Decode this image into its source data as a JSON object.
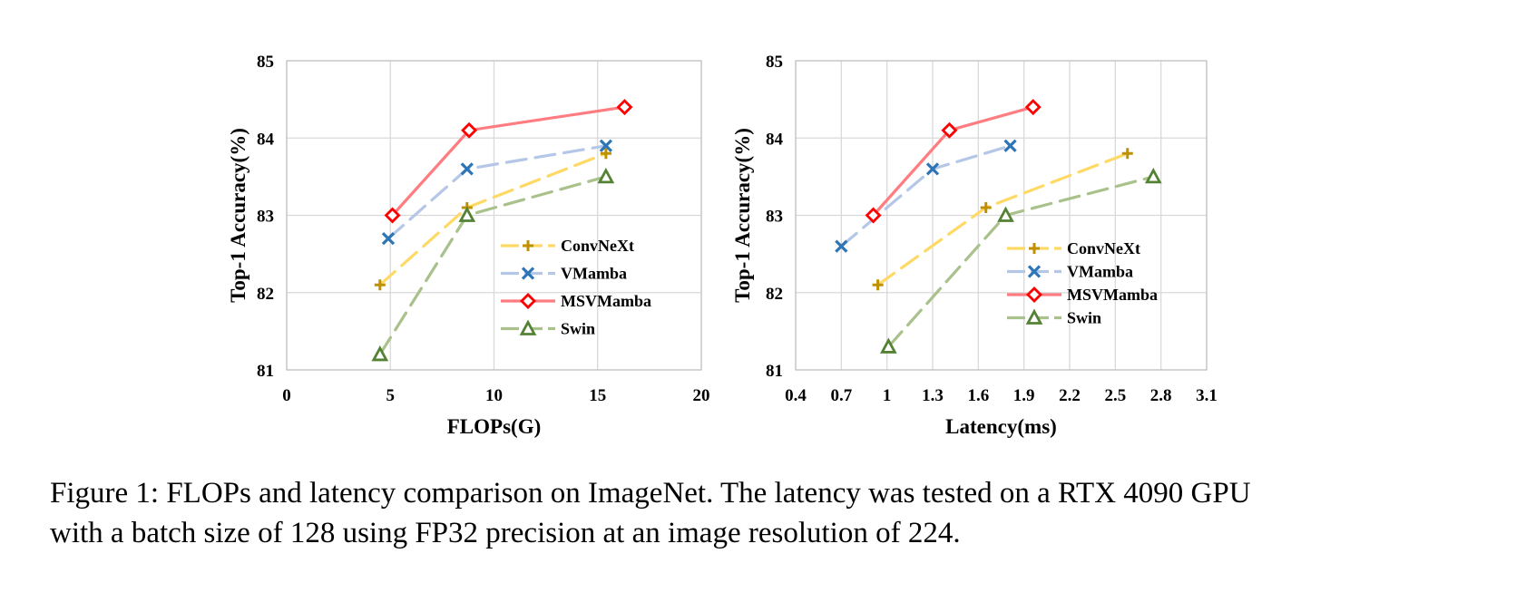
{
  "chart_data": [
    {
      "type": "line",
      "xlabel": "FLOPs(G)",
      "ylabel": "Top-1 Accuracy(%)",
      "xlim": [
        0,
        20
      ],
      "ylim": [
        81,
        85
      ],
      "x_ticks": [
        "0",
        "5",
        "10",
        "15",
        "20"
      ],
      "y_ticks": [
        "81",
        "82",
        "83",
        "84",
        "85"
      ],
      "grid": true,
      "legend_position": "right-center",
      "series": [
        {
          "name": "ConvNeXt",
          "color": "#ffd966",
          "marker": "plus",
          "marker_color": "#bf9000",
          "dash": true,
          "points": [
            [
              4.5,
              82.1
            ],
            [
              8.7,
              83.1
            ],
            [
              15.4,
              83.8
            ]
          ]
        },
        {
          "name": "VMamba",
          "color": "#b4c7e7",
          "marker": "x",
          "marker_color": "#2e75b6",
          "dash": true,
          "points": [
            [
              4.9,
              82.7
            ],
            [
              8.7,
              83.6
            ],
            [
              15.4,
              83.9
            ]
          ]
        },
        {
          "name": "MSVMamba",
          "color": "#ff7c80",
          "marker": "diamond",
          "marker_color": "#ff0000",
          "dash": false,
          "points": [
            [
              5.1,
              83.0
            ],
            [
              8.8,
              84.1
            ],
            [
              16.3,
              84.4
            ]
          ]
        },
        {
          "name": "Swin",
          "color": "#a9c18b",
          "marker": "triangle",
          "marker_color": "#548235",
          "dash": true,
          "points": [
            [
              4.5,
              81.2
            ],
            [
              8.7,
              83.0
            ],
            [
              15.4,
              83.5
            ]
          ]
        }
      ]
    },
    {
      "type": "line",
      "xlabel": "Latency(ms)",
      "ylabel": "Top-1 Accuracy(%)",
      "xlim": [
        0.4,
        3.1
      ],
      "ylim": [
        81,
        85
      ],
      "x_ticks": [
        "0.4",
        "0.7",
        "1",
        "1.3",
        "1.6",
        "1.9",
        "2.2",
        "2.5",
        "2.8",
        "3.1"
      ],
      "y_ticks": [
        "81",
        "82",
        "83",
        "84",
        "85"
      ],
      "grid": true,
      "legend_position": "right-center",
      "series": [
        {
          "name": "ConvNeXt",
          "color": "#ffd966",
          "marker": "plus",
          "marker_color": "#bf9000",
          "dash": true,
          "points": [
            [
              0.94,
              82.1
            ],
            [
              1.65,
              83.1
            ],
            [
              2.58,
              83.8
            ]
          ]
        },
        {
          "name": "VMamba",
          "color": "#b4c7e7",
          "marker": "x",
          "marker_color": "#2e75b6",
          "dash": true,
          "points": [
            [
              0.7,
              82.6
            ],
            [
              1.3,
              83.6
            ],
            [
              1.81,
              83.9
            ]
          ]
        },
        {
          "name": "MSVMamba",
          "color": "#ff7c80",
          "marker": "diamond",
          "marker_color": "#ff0000",
          "dash": false,
          "points": [
            [
              0.91,
              83.0
            ],
            [
              1.41,
              84.1
            ],
            [
              1.96,
              84.4
            ]
          ]
        },
        {
          "name": "Swin",
          "color": "#a9c18b",
          "marker": "triangle",
          "marker_color": "#548235",
          "dash": true,
          "points": [
            [
              1.01,
              81.3
            ],
            [
              1.78,
              83.0
            ],
            [
              2.75,
              83.5
            ]
          ]
        }
      ]
    }
  ],
  "caption": {
    "line1": "Figure 1: FLOPs and latency comparison on ImageNet. The latency was tested on a RTX 4090 GPU",
    "line2": "with a batch size of 128 using FP32 precision at an image resolution of 224."
  }
}
